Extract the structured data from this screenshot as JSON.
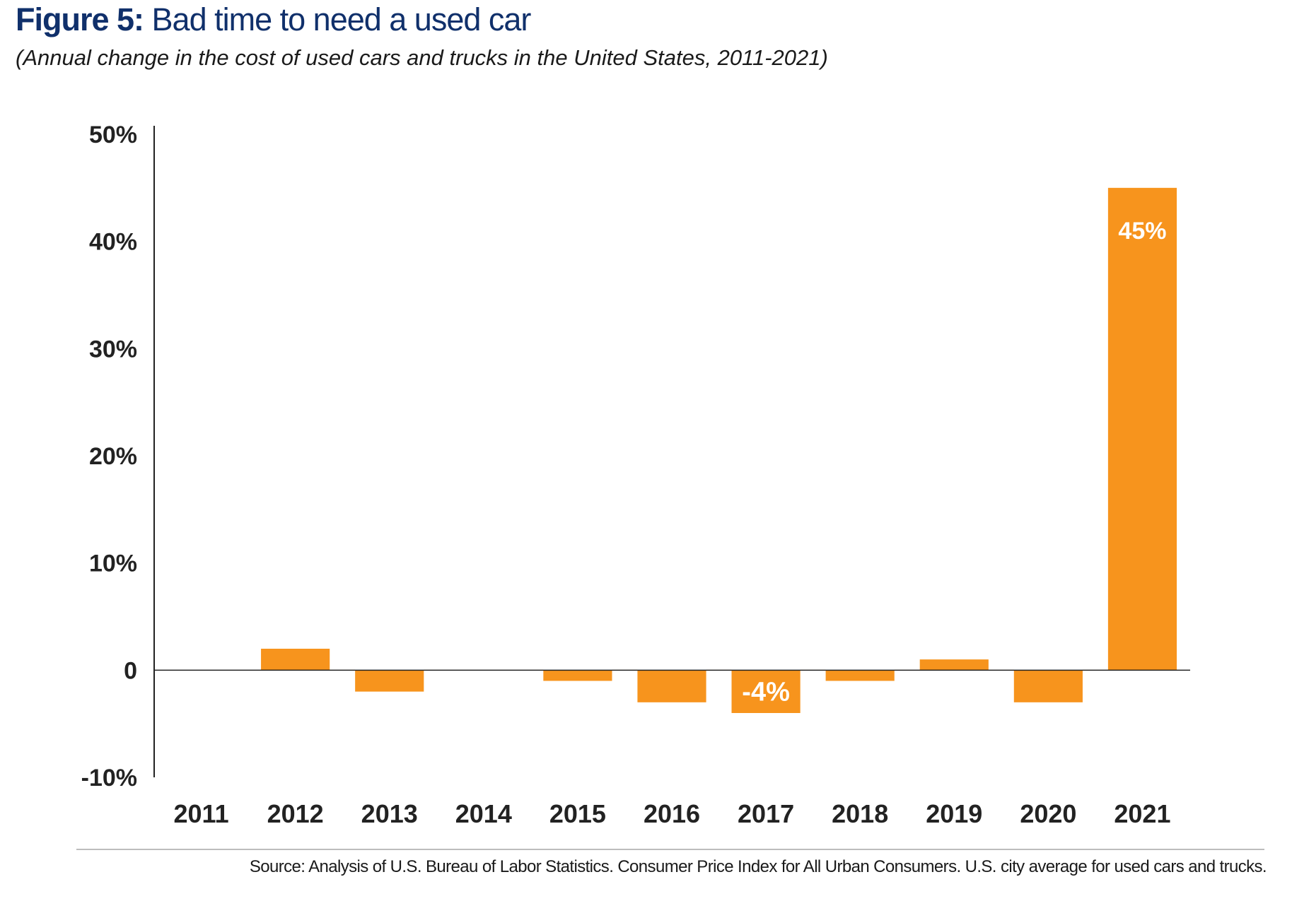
{
  "title": {
    "label": "Figure 5:",
    "text": "Bad time to need a used car"
  },
  "subtitle": "(Annual change in the cost of used cars and trucks in the United States, 2011-2021)",
  "source": "Source: Analysis of U.S. Bureau of Labor Statistics. Consumer Price Index for All Urban Consumers. U.S. city average for used cars and trucks.",
  "colors": {
    "bar": "#f7941d",
    "title": "#10306b",
    "axis": "#222222",
    "data_label": "#ffffff"
  },
  "chart_data": {
    "type": "bar",
    "categories": [
      "2011",
      "2012",
      "2013",
      "2014",
      "2015",
      "2016",
      "2017",
      "2018",
      "2019",
      "2020",
      "2021"
    ],
    "values": [
      0,
      2,
      -2,
      0,
      -1,
      -3,
      -4,
      -1,
      1,
      -3,
      45
    ],
    "data_labels": {
      "2017": "-4%",
      "2021": "45%"
    },
    "ylim": [
      -10,
      50
    ],
    "yticks": [
      50,
      40,
      30,
      20,
      10,
      0,
      -10
    ],
    "ytick_labels": [
      "50%",
      "40%",
      "30%",
      "20%",
      "10%",
      "0",
      "-10%"
    ],
    "xlabel": "",
    "ylabel": "",
    "grid": false,
    "legend": "none"
  }
}
